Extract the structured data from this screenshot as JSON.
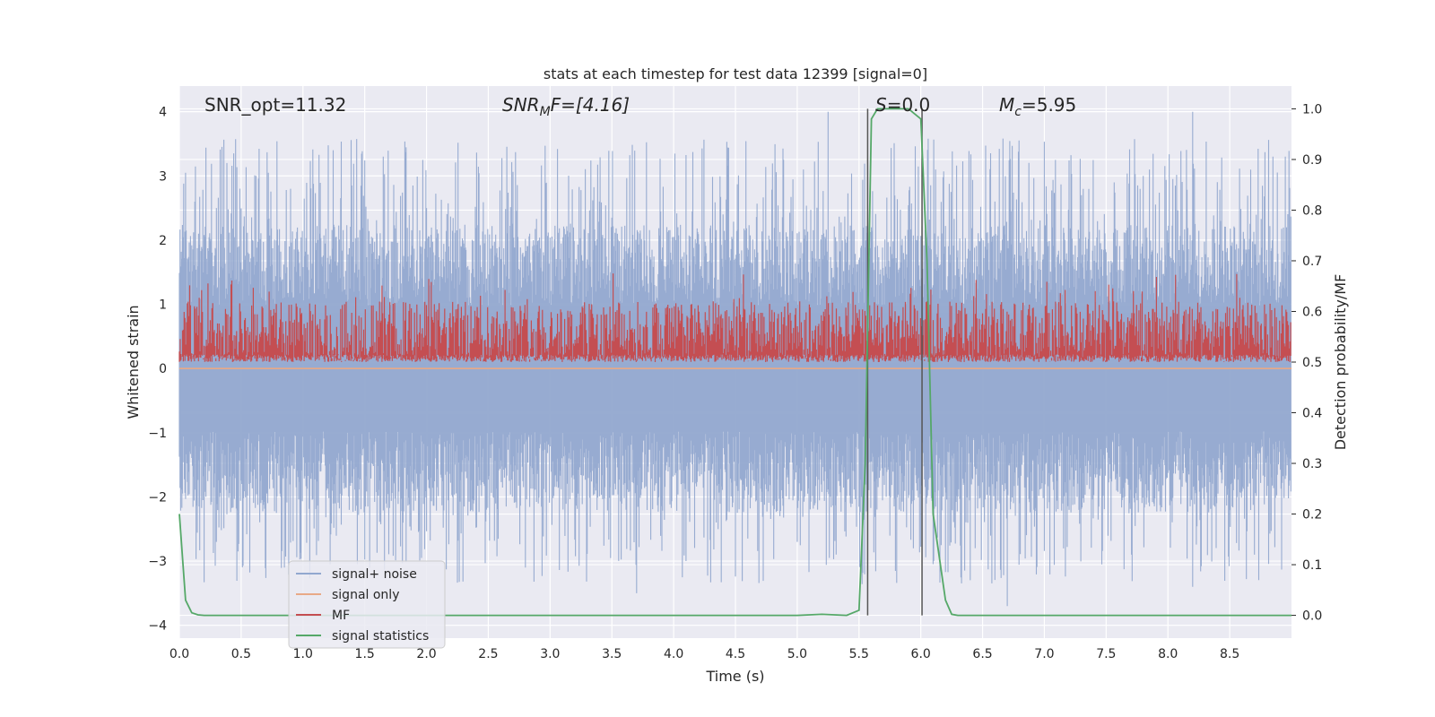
{
  "chart_data": {
    "type": "line",
    "title": "stats at each timestep for test data 12399 [signal=0]",
    "xlabel": "Time (s)",
    "ylabel_left": "Whitened strain",
    "ylabel_right": "Detection probability/MF",
    "xlim": [
      0.0,
      9.0
    ],
    "ylim_left": [
      -4.2,
      4.4
    ],
    "ylim_right": [
      -0.045,
      1.045
    ],
    "x_ticks": [
      "0.0",
      "0.5",
      "1.0",
      "1.5",
      "2.0",
      "2.5",
      "3.0",
      "3.5",
      "4.0",
      "4.5",
      "5.0",
      "5.5",
      "6.0",
      "6.5",
      "7.0",
      "7.5",
      "8.0",
      "8.5"
    ],
    "y_ticks_left": [
      "4",
      "3",
      "2",
      "1",
      "0",
      "−1",
      "−2",
      "−3",
      "−4"
    ],
    "y_ticks_right": [
      "1.0",
      "0.9",
      "0.8",
      "0.7",
      "0.6",
      "0.5",
      "0.4",
      "0.3",
      "0.2",
      "0.1",
      "0.0"
    ],
    "grid": true,
    "legend_position": "lower-left",
    "annotations": {
      "snr_opt": "SNR_opt=11.32",
      "snr_mf_base": "SNR",
      "snr_mf_sub": "M",
      "snr_mf_rest": "F=[4.16]",
      "s_label": "S",
      "s_value": "=0.0",
      "mc_base": "M",
      "mc_sub": "c",
      "mc_value": "=5.95"
    },
    "vertical_lines_x": [
      5.57,
      6.01
    ],
    "series": [
      {
        "name": "signal+ noise",
        "color": "#92a8cf",
        "description_axis": "left",
        "envelope_amplitude_typical": 1.4,
        "spikes_positive": [
          [
            0.05,
            3.05
          ],
          [
            0.3,
            2.5
          ],
          [
            0.9,
            2.8
          ],
          [
            1.5,
            2.7
          ],
          [
            2.0,
            2.5
          ],
          [
            3.4,
            2.6
          ],
          [
            4.4,
            2.4
          ],
          [
            5.05,
            3.1
          ],
          [
            5.25,
            4.0
          ],
          [
            5.6,
            2.2
          ],
          [
            6.6,
            2.6
          ],
          [
            7.3,
            2.7
          ],
          [
            7.8,
            3.0
          ],
          [
            8.2,
            4.0
          ],
          [
            8.85,
            3.3
          ],
          [
            8.95,
            3.3
          ]
        ],
        "spikes_negative": [
          [
            0.3,
            -2.7
          ],
          [
            0.85,
            -3.1
          ],
          [
            2.8,
            -3.1
          ],
          [
            3.7,
            -3.5
          ],
          [
            4.1,
            -3.0
          ],
          [
            5.0,
            -2.7
          ],
          [
            6.7,
            -3.7
          ],
          [
            8.2,
            -3.4
          ],
          [
            8.7,
            -2.9
          ]
        ]
      },
      {
        "name": "signal only",
        "color": "#e8a987",
        "description_axis": "left",
        "x": [
          0.0,
          9.0
        ],
        "y": [
          0.0,
          0.0
        ]
      },
      {
        "name": "MF",
        "color": "#c44e52",
        "description_axis": "right",
        "typical_range": [
          0.5,
          0.62
        ]
      },
      {
        "name": "signal statistics",
        "color": "#55a868",
        "description_axis": "right",
        "x": [
          0.0,
          0.05,
          0.1,
          0.15,
          0.2,
          5.0,
          5.2,
          5.4,
          5.5,
          5.55,
          5.6,
          5.65,
          5.7,
          5.8,
          5.9,
          6.0,
          6.05,
          6.1,
          6.2,
          6.25,
          6.3,
          9.0
        ],
        "y": [
          0.2,
          0.03,
          0.005,
          0.001,
          0.0,
          0.0,
          0.002,
          0.0,
          0.01,
          0.3,
          0.98,
          1.0,
          1.0,
          1.0,
          1.0,
          0.98,
          0.7,
          0.2,
          0.03,
          0.002,
          0.0,
          0.0
        ]
      }
    ]
  }
}
